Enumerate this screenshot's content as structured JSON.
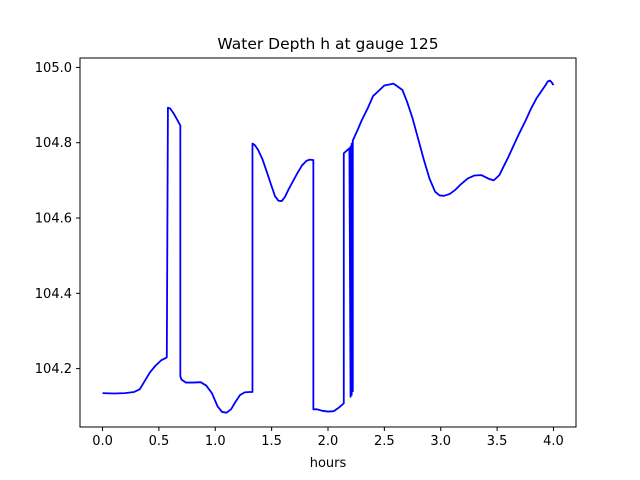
{
  "chart_data": {
    "type": "line",
    "title": "Water Depth h at gauge 125",
    "xlabel": "hours",
    "ylabel": "",
    "xlim": [
      -0.2,
      4.2
    ],
    "ylim": [
      104.045,
      105.025
    ],
    "xticks": [
      0.0,
      0.5,
      1.0,
      1.5,
      2.0,
      2.5,
      3.0,
      3.5,
      4.0
    ],
    "xtick_labels": [
      "0.0",
      "0.5",
      "1.0",
      "1.5",
      "2.0",
      "2.5",
      "3.0",
      "3.5",
      "4.0"
    ],
    "yticks": [
      104.2,
      104.4,
      104.6,
      104.8,
      105.0
    ],
    "ytick_labels": [
      "104.2",
      "104.4",
      "104.6",
      "104.8",
      "105.0"
    ],
    "grid": false,
    "colors": {
      "line": "#0000ff",
      "axes": "#000000",
      "background": "#ffffff"
    },
    "series": [
      {
        "x": [
          0.0,
          0.1,
          0.2,
          0.28,
          0.33,
          0.37,
          0.42,
          0.47,
          0.52,
          0.56,
          0.57,
          0.58,
          0.6,
          0.63,
          0.66,
          0.69,
          0.69,
          0.7,
          0.74,
          0.8,
          0.87,
          0.92,
          0.97,
          1.02,
          1.06,
          1.1,
          1.14,
          1.18,
          1.22,
          1.26,
          1.3,
          1.33,
          1.33,
          1.35,
          1.38,
          1.42,
          1.46,
          1.5,
          1.53,
          1.56,
          1.59,
          1.62,
          1.65,
          1.69,
          1.73,
          1.77,
          1.81,
          1.84,
          1.86,
          1.87,
          1.87,
          1.9,
          1.95,
          2.0,
          2.05,
          2.09,
          2.13,
          2.14,
          2.14,
          2.17,
          2.19,
          2.2,
          2.2,
          2.21,
          2.21,
          2.22,
          2.22,
          2.26,
          2.3,
          2.35,
          2.4,
          2.45,
          2.5,
          2.55,
          2.58,
          2.61,
          2.66,
          2.7,
          2.75,
          2.8,
          2.85,
          2.9,
          2.95,
          2.99,
          3.03,
          3.08,
          3.13,
          3.18,
          3.24,
          3.3,
          3.36,
          3.42,
          3.47,
          3.52,
          3.56,
          3.6,
          3.65,
          3.7,
          3.75,
          3.8,
          3.85,
          3.9,
          3.93,
          3.95,
          3.97,
          3.99,
          4.0
        ],
        "y": [
          104.135,
          104.134,
          104.135,
          104.138,
          104.145,
          104.165,
          104.19,
          104.208,
          104.222,
          104.228,
          104.23,
          104.893,
          104.891,
          104.878,
          104.862,
          104.846,
          104.18,
          104.171,
          104.163,
          104.163,
          104.164,
          104.155,
          104.135,
          104.1,
          104.085,
          104.083,
          104.092,
          104.112,
          104.13,
          104.137,
          104.138,
          104.138,
          104.798,
          104.794,
          104.781,
          104.755,
          104.72,
          104.684,
          104.658,
          104.646,
          104.645,
          104.657,
          104.676,
          104.698,
          104.72,
          104.74,
          104.752,
          104.755,
          104.754,
          104.754,
          104.092,
          104.092,
          104.088,
          104.086,
          104.087,
          104.095,
          104.105,
          104.108,
          104.772,
          104.78,
          104.785,
          104.125,
          104.79,
          104.13,
          104.798,
          104.14,
          104.806,
          104.832,
          104.86,
          104.89,
          104.924,
          104.938,
          104.952,
          104.955,
          104.957,
          104.951,
          104.94,
          104.91,
          104.865,
          104.81,
          104.755,
          104.705,
          104.67,
          104.66,
          104.659,
          104.664,
          104.675,
          104.69,
          104.705,
          104.713,
          104.714,
          104.705,
          104.7,
          104.714,
          104.738,
          104.762,
          104.795,
          104.827,
          104.857,
          104.89,
          104.918,
          104.94,
          104.953,
          104.963,
          104.965,
          104.958,
          104.953
        ]
      }
    ]
  }
}
